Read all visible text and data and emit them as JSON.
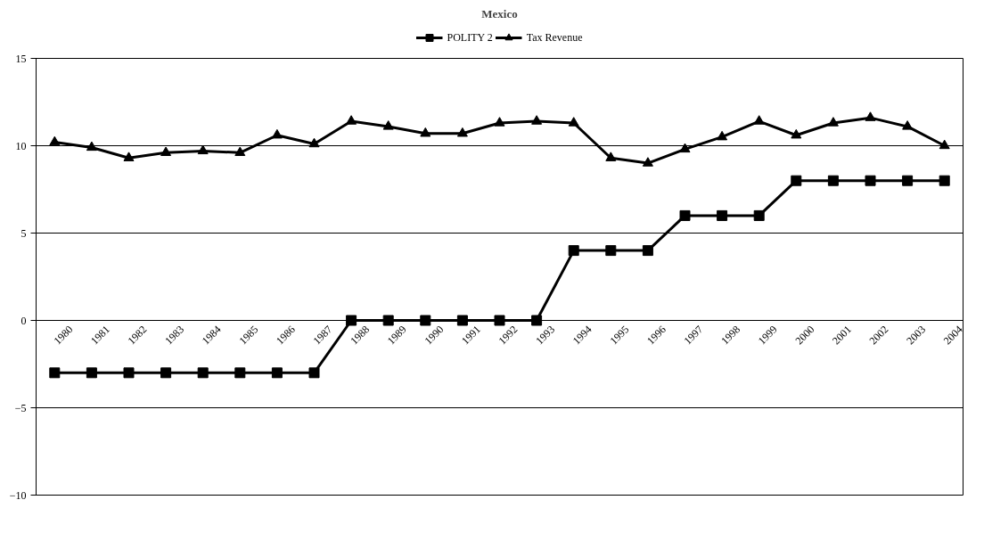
{
  "chart_data": {
    "type": "line",
    "title": "Mexico",
    "categories": [
      "1980",
      "1981",
      "1982",
      "1983",
      "1984",
      "1985",
      "1986",
      "1987",
      "1988",
      "1989",
      "1990",
      "1991",
      "1992",
      "1993",
      "1994",
      "1995",
      "1996",
      "1997",
      "1998",
      "1999",
      "2000",
      "2001",
      "2002",
      "2003",
      "2004"
    ],
    "series": [
      {
        "name": "POLITY 2",
        "color": "#000000",
        "marker": "square",
        "values": [
          -3,
          -3,
          -3,
          -3,
          -3,
          -3,
          -3,
          -3,
          0,
          0,
          0,
          0,
          0,
          0,
          4,
          4,
          4,
          6,
          6,
          6,
          8,
          8,
          8,
          8,
          8
        ]
      },
      {
        "name": "Tax Revenue",
        "color": "#000000",
        "marker": "triangle",
        "values": [
          10.2,
          9.9,
          9.3,
          9.6,
          9.7,
          9.6,
          10.6,
          10.1,
          11.4,
          11.1,
          10.7,
          10.7,
          11.3,
          11.4,
          11.3,
          9.3,
          9.0,
          9.8,
          10.5,
          11.4,
          10.6,
          11.3,
          11.6,
          11.1,
          10.0
        ]
      }
    ],
    "ylim": [
      -10,
      15
    ],
    "yticks": [
      -10,
      -5,
      0,
      5,
      10,
      15
    ],
    "grid": "y",
    "legend": "top",
    "line_style": "solid"
  }
}
